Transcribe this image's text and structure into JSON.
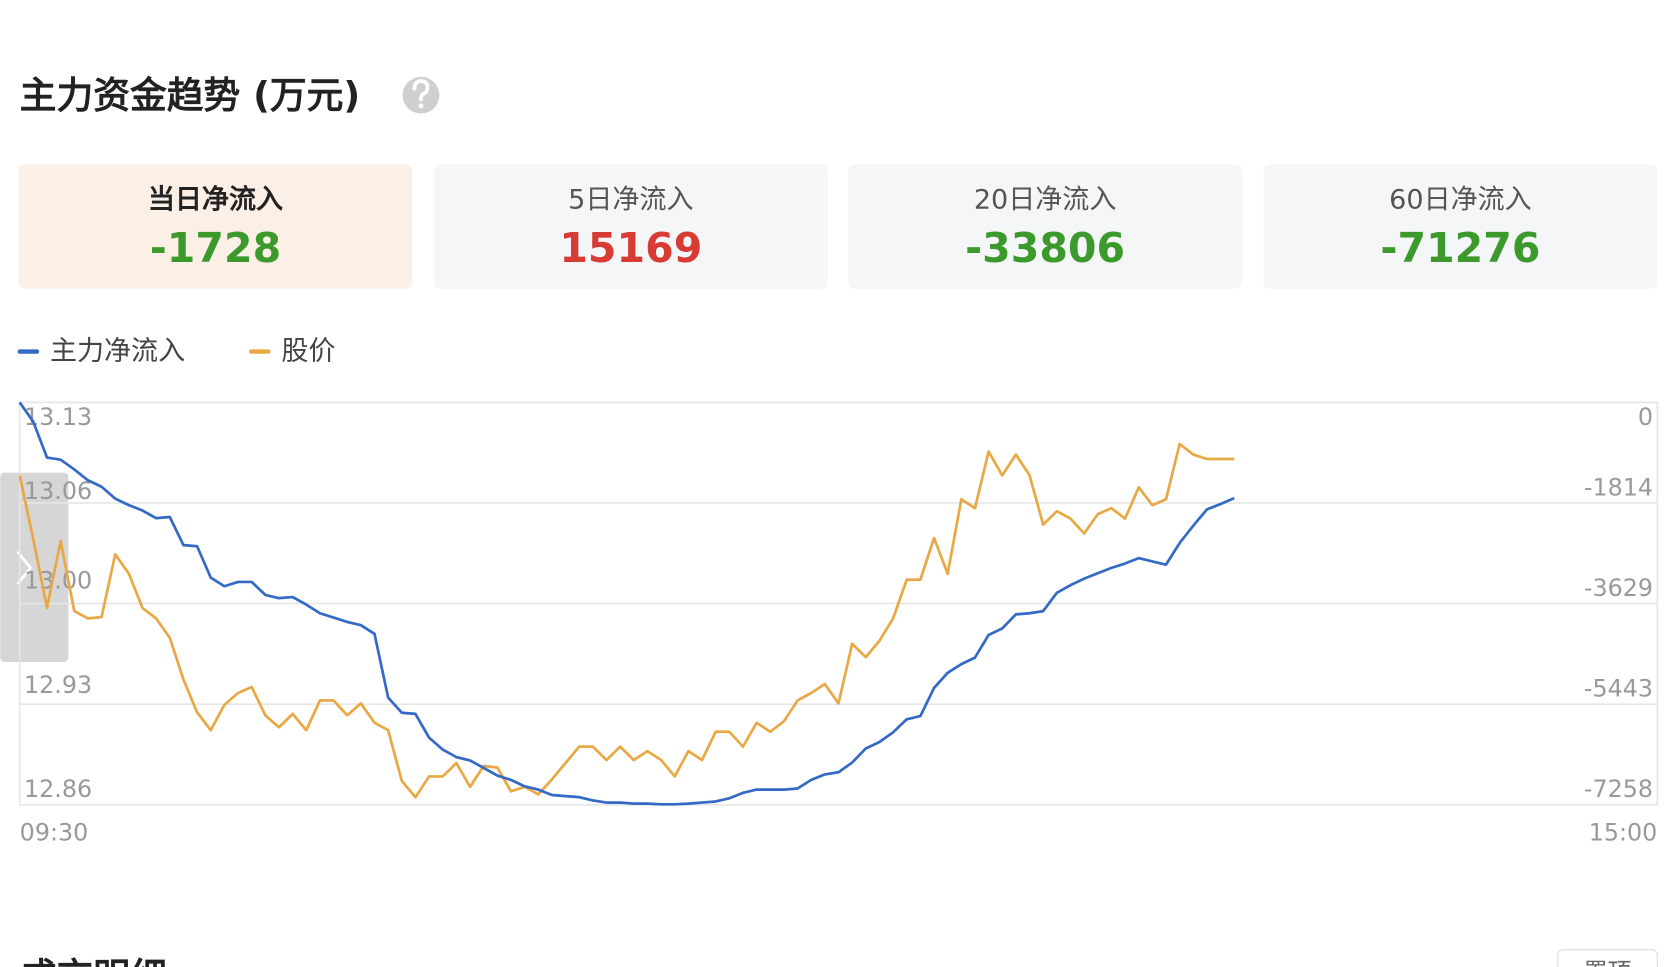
{
  "header": {
    "title": "主力资金趋势 (万元)"
  },
  "cards": [
    {
      "label": "当日净流入",
      "value": -1728,
      "color": "#3c9a2c"
    },
    {
      "label": "5日净流入",
      "value": 15169,
      "color": "#d83a34"
    },
    {
      "label": "20日净流入",
      "value": -33806,
      "color": "#3c9a2c"
    },
    {
      "label": "60日净流入",
      "value": -71276,
      "color": "#3c9a2c"
    }
  ],
  "chart_data": {
    "type": "line",
    "categories": [
      "09:30",
      null,
      null,
      null,
      null,
      null,
      null,
      null,
      null,
      null,
      null,
      null,
      null,
      null,
      null,
      null,
      null,
      null,
      null,
      null,
      null,
      null,
      null,
      null,
      null,
      null,
      null,
      null,
      null,
      null,
      null,
      null,
      null,
      null,
      null,
      null,
      null,
      null,
      null,
      null,
      null,
      null,
      null,
      null,
      null,
      null,
      null,
      null,
      null,
      null,
      null,
      null,
      null,
      null,
      null,
      null,
      null,
      null,
      null,
      null,
      null,
      null,
      null,
      null,
      null,
      null,
      null,
      null,
      null,
      null,
      null,
      null,
      null,
      null,
      null,
      null,
      null,
      null,
      null,
      null,
      null,
      null,
      null,
      null,
      null,
      null,
      null,
      null,
      null,
      null,
      null,
      null,
      null,
      null,
      null,
      null,
      null,
      null,
      null,
      null,
      null,
      null,
      null,
      null,
      null,
      null,
      null,
      null,
      null,
      null,
      null,
      null,
      null,
      null,
      null,
      null,
      null,
      null,
      null,
      null,
      "15:00"
    ],
    "series": [
      {
        "name": "主力净流入",
        "color": "#3469c6",
        "axis": "y2",
        "values": [
          0,
          -351,
          -995,
          -1034,
          -1210,
          -1405,
          -1522,
          -1736,
          -1853,
          -1951,
          -2088,
          -2068,
          -2575,
          -2595,
          -3161,
          -3317,
          -3239,
          -3239,
          -3473,
          -3531,
          -3512,
          -3648,
          -3804,
          -3882,
          -3961,
          -4019,
          -4175,
          -5326,
          -5599,
          -5619,
          -6048,
          -6263,
          -6399,
          -6458,
          -6594,
          -6731,
          -6809,
          -6926,
          -6985,
          -7082,
          -7102,
          -7121,
          -7180,
          -7219,
          -7219,
          -7238,
          -7238,
          -7250,
          -7250,
          -7238,
          -7219,
          -7199,
          -7141,
          -7043,
          -6985,
          -6985,
          -6985,
          -6965,
          -6809,
          -6711,
          -6672,
          -6497,
          -6243,
          -6126,
          -5951,
          -5716,
          -5658,
          -5151,
          -4878,
          -4721,
          -4604,
          -4195,
          -4078,
          -3824,
          -3804,
          -3765,
          -3434,
          -3297,
          -3180,
          -3083,
          -2985,
          -2907,
          -2809,
          -2868,
          -2927,
          -2536,
          -2224,
          -1931,
          -1834,
          -1728,
          null,
          null,
          null,
          null,
          null,
          null,
          null,
          null,
          null,
          null,
          null,
          null,
          null,
          null,
          null,
          null,
          null,
          null,
          null,
          null,
          null,
          null,
          null,
          null,
          null,
          null,
          null,
          null,
          null,
          null,
          null
        ]
      },
      {
        "name": "股价",
        "color": "#e8a844",
        "values": [
          13.081,
          13.038,
          12.992,
          13.037,
          12.99,
          12.985,
          12.986,
          13.028,
          13.015,
          12.992,
          12.985,
          12.972,
          12.944,
          12.922,
          12.91,
          12.927,
          12.935,
          12.939,
          12.92,
          12.912,
          12.921,
          12.91,
          12.93,
          12.93,
          12.92,
          12.928,
          12.915,
          12.91,
          12.876,
          12.865,
          12.879,
          12.879,
          12.888,
          12.872,
          12.886,
          12.885,
          12.869,
          12.872,
          12.867,
          12.877,
          12.888,
          12.899,
          12.899,
          12.89,
          12.899,
          12.89,
          12.896,
          12.89,
          12.879,
          12.896,
          12.89,
          12.909,
          12.909,
          12.899,
          12.915,
          12.909,
          12.916,
          12.93,
          12.935,
          12.941,
          12.928,
          12.968,
          12.959,
          12.97,
          12.985,
          13.011,
          13.011,
          13.039,
          13.015,
          13.065,
          13.059,
          13.097,
          13.081,
          13.095,
          13.081,
          13.048,
          13.057,
          13.052,
          13.042,
          13.055,
          13.059,
          13.052,
          13.073,
          13.061,
          13.065,
          13.102,
          13.095,
          13.092,
          13.092,
          13.092,
          null,
          null,
          null,
          null,
          null,
          null,
          null,
          null,
          null,
          null,
          null,
          null,
          null,
          null,
          null,
          null,
          null,
          null,
          null,
          null,
          null,
          null,
          null,
          null,
          null,
          null,
          null,
          null,
          null,
          null,
          null
        ]
      }
    ],
    "ylim": [
      12.86,
      13.13
    ],
    "yticks": [
      13.13,
      13.06,
      {
        "value": 13,
        "label": "13.00"
      },
      12.93,
      12.86
    ],
    "y2lim": [
      -7258,
      0
    ],
    "y2ticks": [
      0,
      -1814,
      -3629,
      -5443,
      -7258
    ],
    "grid": true
  },
  "section": {
    "title": "成交明细",
    "button": "置顶"
  }
}
